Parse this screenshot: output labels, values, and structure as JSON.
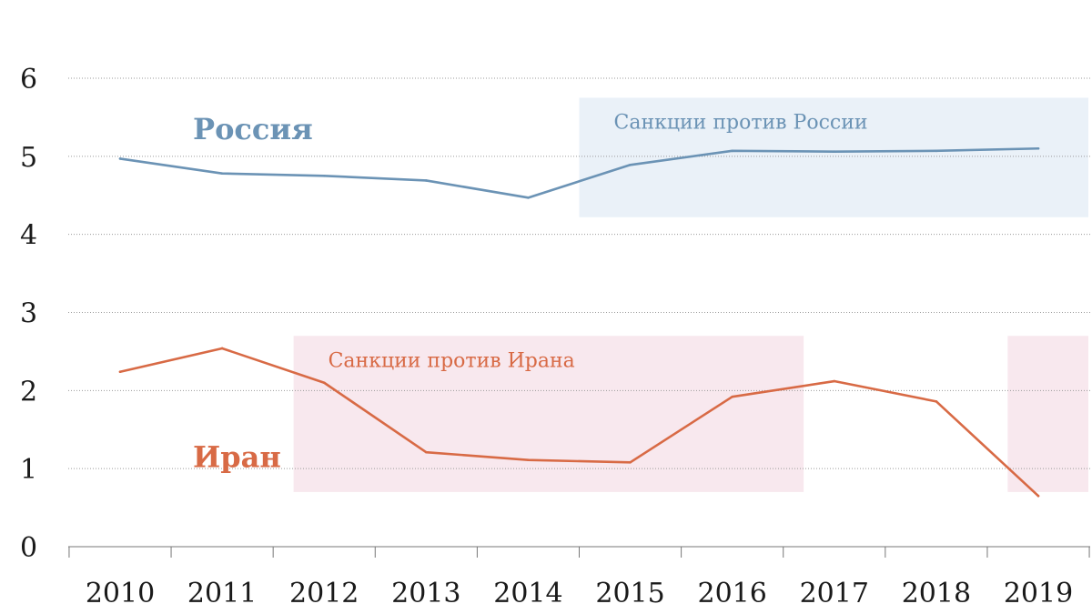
{
  "chart_data": {
    "type": "line",
    "x": [
      2010,
      2011,
      2012,
      2013,
      2014,
      2015,
      2016,
      2017,
      2018,
      2019
    ],
    "ylim": [
      0,
      6
    ],
    "yticks": [
      "0",
      "1",
      "2",
      "3",
      "4",
      "5",
      "6"
    ],
    "xticks": [
      "2010",
      "2011",
      "2012",
      "2013",
      "2014",
      "2015",
      "2016",
      "2017",
      "2018",
      "2019"
    ],
    "grid": true,
    "series": [
      {
        "name": "Россия",
        "color": "#6b93b5",
        "values": [
          4.97,
          4.78,
          4.75,
          4.69,
          4.47,
          4.89,
          5.07,
          5.06,
          5.07,
          5.1
        ]
      },
      {
        "name": "Иран",
        "color": "#d86a45",
        "values": [
          2.24,
          2.54,
          2.1,
          1.21,
          1.11,
          1.08,
          1.92,
          2.12,
          1.86,
          0.65
        ]
      }
    ],
    "annotations": [
      {
        "label": "Санкции против России",
        "color": "#eaf1f8",
        "text_color": "#6b93b5",
        "x_range": [
          2014.5,
          2019.5
        ],
        "y_range": [
          4.22,
          5.75
        ]
      },
      {
        "label": "Санкции против Ирана",
        "color": "#f8e8ee",
        "text_color": "#d86a45",
        "x_range": [
          2011.7,
          2016.7
        ],
        "y_range": [
          0.7,
          2.7
        ]
      },
      {
        "label": "",
        "color": "#f8e8ee",
        "text_color": "#d86a45",
        "x_range": [
          2018.7,
          2019.5
        ],
        "y_range": [
          0.7,
          2.7
        ]
      }
    ]
  }
}
